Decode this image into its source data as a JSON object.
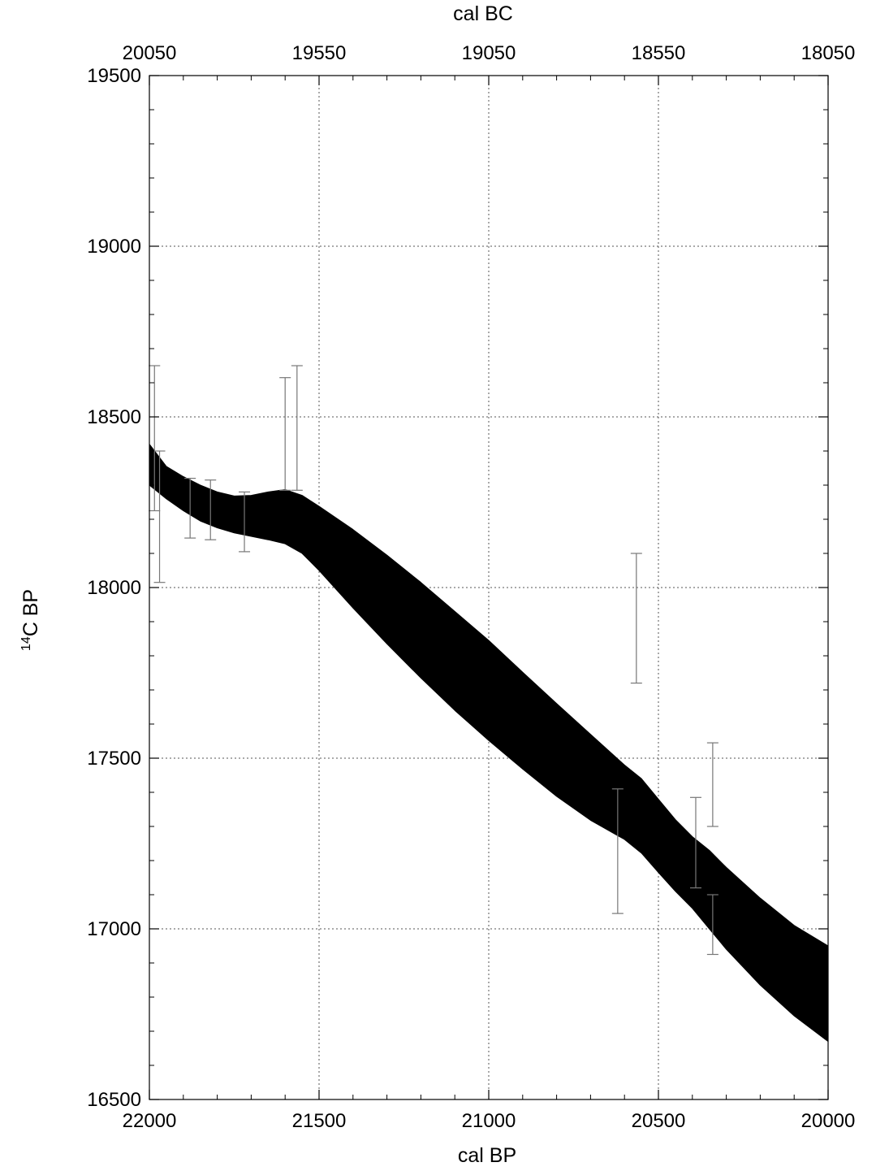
{
  "chart_data": {
    "type": "area",
    "xlabel_bottom": "cal BP",
    "xlabel_top": "cal BC",
    "ylabel_sup": "14",
    "ylabel_main": "C BP",
    "x_range": [
      22000,
      20000
    ],
    "y_range": [
      16500,
      19500
    ],
    "x_ticks_bottom": [
      22000,
      21500,
      21000,
      20500,
      20000
    ],
    "x_ticks_top": [
      20050,
      19550,
      19050,
      18550,
      18050
    ],
    "y_ticks": [
      16500,
      17000,
      17500,
      18000,
      18500,
      19000,
      19500
    ],
    "grid": true,
    "band": {
      "color": "#000000",
      "upper": [
        [
          22000,
          18420
        ],
        [
          21950,
          18355
        ],
        [
          21900,
          18325
        ],
        [
          21850,
          18300
        ],
        [
          21800,
          18280
        ],
        [
          21750,
          18268
        ],
        [
          21700,
          18270
        ],
        [
          21650,
          18280
        ],
        [
          21600,
          18287
        ],
        [
          21550,
          18270
        ],
        [
          21500,
          18238
        ],
        [
          21400,
          18170
        ],
        [
          21300,
          18095
        ],
        [
          21200,
          18015
        ],
        [
          21100,
          17930
        ],
        [
          21000,
          17845
        ],
        [
          20900,
          17752
        ],
        [
          20800,
          17660
        ],
        [
          20700,
          17570
        ],
        [
          20600,
          17480
        ],
        [
          20550,
          17440
        ],
        [
          20500,
          17380
        ],
        [
          20450,
          17320
        ],
        [
          20400,
          17270
        ],
        [
          20350,
          17230
        ],
        [
          20300,
          17180
        ],
        [
          20200,
          17090
        ],
        [
          20100,
          17010
        ],
        [
          20000,
          16950
        ]
      ],
      "lower": [
        [
          22000,
          18300
        ],
        [
          21950,
          18260
        ],
        [
          21900,
          18225
        ],
        [
          21850,
          18195
        ],
        [
          21800,
          18175
        ],
        [
          21750,
          18160
        ],
        [
          21700,
          18150
        ],
        [
          21650,
          18140
        ],
        [
          21600,
          18128
        ],
        [
          21550,
          18100
        ],
        [
          21500,
          18050
        ],
        [
          21400,
          17940
        ],
        [
          21300,
          17835
        ],
        [
          21200,
          17735
        ],
        [
          21100,
          17640
        ],
        [
          21000,
          17552
        ],
        [
          20900,
          17468
        ],
        [
          20800,
          17388
        ],
        [
          20700,
          17318
        ],
        [
          20600,
          17262
        ],
        [
          20550,
          17222
        ],
        [
          20500,
          17165
        ],
        [
          20450,
          17110
        ],
        [
          20400,
          17060
        ],
        [
          20350,
          17000
        ],
        [
          20300,
          16940
        ],
        [
          20200,
          16835
        ],
        [
          20100,
          16745
        ],
        [
          20000,
          16670
        ]
      ]
    },
    "error_bars": [
      {
        "x": 21985,
        "low": 18225,
        "high": 18650
      },
      {
        "x": 21970,
        "low": 18015,
        "high": 18400
      },
      {
        "x": 21880,
        "low": 18145,
        "high": 18320
      },
      {
        "x": 21820,
        "low": 18140,
        "high": 18315
      },
      {
        "x": 21720,
        "low": 18105,
        "high": 18280
      },
      {
        "x": 21600,
        "low": 18285,
        "high": 18615
      },
      {
        "x": 21565,
        "low": 18285,
        "high": 18650
      },
      {
        "x": 20620,
        "low": 17045,
        "high": 17410
      },
      {
        "x": 20565,
        "low": 17720,
        "high": 18100
      },
      {
        "x": 20390,
        "low": 17120,
        "high": 17385
      },
      {
        "x": 20340,
        "low": 16925,
        "high": 17100
      },
      {
        "x": 20340,
        "low": 17300,
        "high": 17545
      }
    ]
  }
}
